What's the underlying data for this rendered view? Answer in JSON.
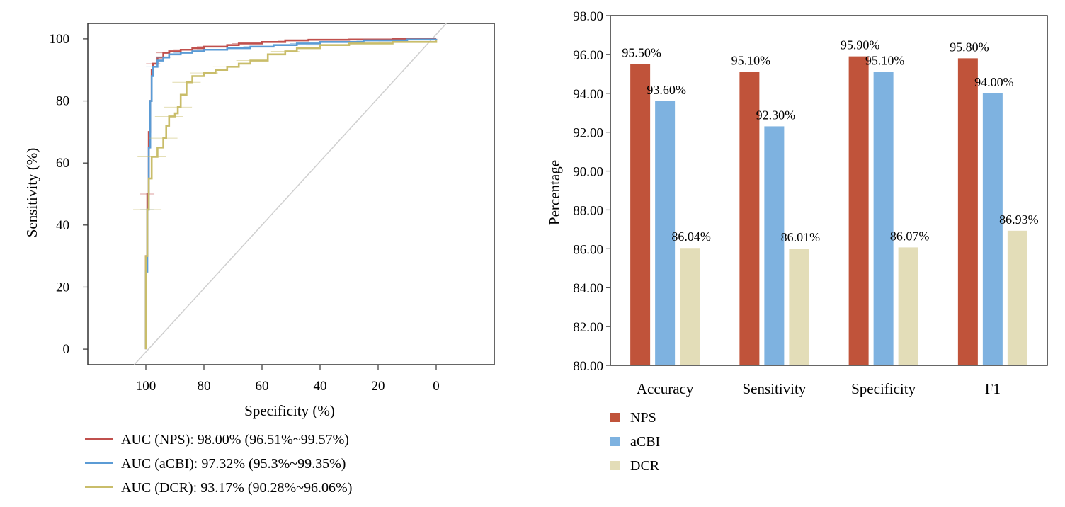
{
  "chart_data": [
    {
      "type": "line",
      "title": "",
      "xlabel": "Specificity (%)",
      "ylabel": "Sensitivity (%)",
      "xlim": [
        120,
        -20
      ],
      "ylim": [
        -5,
        105
      ],
      "x_ticks": [
        "100",
        "80",
        "60",
        "40",
        "20",
        "0"
      ],
      "y_ticks": [
        "100",
        "80",
        "60",
        "40",
        "20",
        "0"
      ],
      "reference_line": "diagonal",
      "legend_position": "bottom",
      "series": [
        {
          "name": "AUC (NPS): 98.00% (96.51%~99.57%)",
          "color": "#c0504d",
          "points": [
            [
              100,
              0
            ],
            [
              100,
              30
            ],
            [
              99.5,
              50
            ],
            [
              99,
              70
            ],
            [
              98.5,
              80
            ],
            [
              98,
              90
            ],
            [
              97.5,
              92
            ],
            [
              96,
              94
            ],
            [
              94,
              95.5
            ],
            [
              92,
              96
            ],
            [
              88,
              96.5
            ],
            [
              84,
              97
            ],
            [
              80,
              97.5
            ],
            [
              72,
              98
            ],
            [
              68,
              98.5
            ],
            [
              60,
              99
            ],
            [
              52,
              99.5
            ],
            [
              44,
              99.7
            ],
            [
              30,
              99.8
            ],
            [
              15,
              99.9
            ],
            [
              0,
              100
            ]
          ]
        },
        {
          "name": "AUC (aCBI): 97.32% (95.3%~99.35%)",
          "color": "#5b9bd5",
          "points": [
            [
              100,
              0
            ],
            [
              100,
              25
            ],
            [
              99.5,
              45
            ],
            [
              99,
              65
            ],
            [
              98.5,
              80
            ],
            [
              98,
              88
            ],
            [
              97.5,
              91
            ],
            [
              96,
              93
            ],
            [
              94,
              94
            ],
            [
              92,
              95
            ],
            [
              88,
              95.5
            ],
            [
              84,
              96
            ],
            [
              80,
              96.5
            ],
            [
              72,
              97
            ],
            [
              64,
              97.5
            ],
            [
              56,
              98
            ],
            [
              48,
              98.5
            ],
            [
              40,
              99
            ],
            [
              25,
              99.5
            ],
            [
              10,
              99.8
            ],
            [
              0,
              100
            ]
          ]
        },
        {
          "name": "AUC (DCR): 93.17% (90.28%~96.06%)",
          "color": "#c9bd6a",
          "points": [
            [
              100,
              0
            ],
            [
              100,
              30
            ],
            [
              99.5,
              45
            ],
            [
              99,
              55
            ],
            [
              98,
              62
            ],
            [
              96,
              65
            ],
            [
              94,
              68
            ],
            [
              93,
              72
            ],
            [
              92,
              75
            ],
            [
              90,
              76
            ],
            [
              89,
              78
            ],
            [
              88,
              82
            ],
            [
              86,
              86
            ],
            [
              84,
              88
            ],
            [
              80,
              89
            ],
            [
              76,
              90
            ],
            [
              72,
              91
            ],
            [
              68,
              92
            ],
            [
              64,
              93
            ],
            [
              58,
              95
            ],
            [
              52,
              96
            ],
            [
              48,
              97
            ],
            [
              40,
              98
            ],
            [
              30,
              98.5
            ],
            [
              15,
              99
            ],
            [
              0,
              99.5
            ]
          ]
        }
      ]
    },
    {
      "type": "bar",
      "title": "",
      "xlabel": "",
      "ylabel": "Percentage",
      "ylim": [
        80,
        98
      ],
      "y_ticks": [
        "80.00",
        "82.00",
        "84.00",
        "86.00",
        "88.00",
        "90.00",
        "92.00",
        "94.00",
        "96.00",
        "98.00"
      ],
      "categories": [
        "Accuracy",
        "Sensitivity",
        "Specificity",
        "F1"
      ],
      "legend_position": "bottom-left",
      "series": [
        {
          "name": "NPS",
          "color": "#c0533a",
          "values": [
            95.5,
            95.1,
            95.9,
            95.8
          ],
          "labels": [
            "95.50%",
            "95.10%",
            "95.90%",
            "95.80%"
          ]
        },
        {
          "name": "aCBI",
          "color": "#7eb2e0",
          "values": [
            93.6,
            92.3,
            95.1,
            94.0
          ],
          "labels": [
            "93.60%",
            "92.30%",
            "95.10%",
            "94.00%"
          ]
        },
        {
          "name": "DCR",
          "color": "#e3ddb8",
          "values": [
            86.04,
            86.01,
            86.07,
            86.93
          ],
          "labels": [
            "86.04%",
            "86.01%",
            "86.07%",
            "86.93%"
          ]
        }
      ]
    }
  ]
}
